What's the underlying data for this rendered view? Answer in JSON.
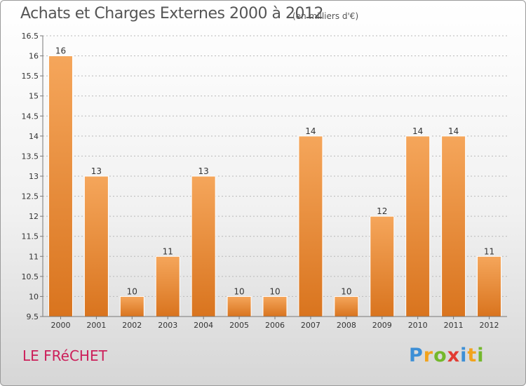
{
  "header": {
    "title": "Achats et Charges Externes 2000 à 2012",
    "subtitle": "(en milliers d'€)"
  },
  "footer": {
    "commune": "LE FRéCHET",
    "logo_letters": [
      "P",
      "r",
      "o",
      "x",
      "i",
      "t",
      "i"
    ],
    "logo_colors": [
      "#3d8fd6",
      "#f2a31d",
      "#74b82c",
      "#e23b32",
      "#3d8fd6",
      "#f2a31d",
      "#74b82c"
    ]
  },
  "colors": {
    "bar_top": "#f5a65b",
    "bar_bottom": "#d9741e",
    "axis": "#777777",
    "grid": "#b8b8b8"
  },
  "chart_data": {
    "type": "bar",
    "title": "Achats et Charges Externes 2000 à 2012",
    "subtitle": "(en milliers d'€)",
    "categories": [
      "2000",
      "2001",
      "2002",
      "2003",
      "2004",
      "2005",
      "2006",
      "2007",
      "2008",
      "2009",
      "2010",
      "2011",
      "2012"
    ],
    "values": [
      16,
      13,
      10,
      11,
      13,
      10,
      10,
      14,
      10,
      12,
      14,
      14,
      11
    ],
    "data_labels": [
      "16",
      "13",
      "10",
      "11",
      "13",
      "10",
      "10",
      "14",
      "10",
      "12",
      "14",
      "14",
      "11"
    ],
    "ylim": [
      9.5,
      16.5
    ],
    "yticks": [
      9.5,
      10,
      10.5,
      11,
      11.5,
      12,
      12.5,
      13,
      13.5,
      14,
      14.5,
      15,
      15.5,
      16,
      16.5
    ],
    "ytick_labels": [
      "9.5",
      "10",
      "10.5",
      "11",
      "11.5",
      "12",
      "12.5",
      "13",
      "13.5",
      "14",
      "14.5",
      "15",
      "15.5",
      "16",
      "16.5"
    ],
    "grid": true,
    "grid_style": "dashed"
  }
}
